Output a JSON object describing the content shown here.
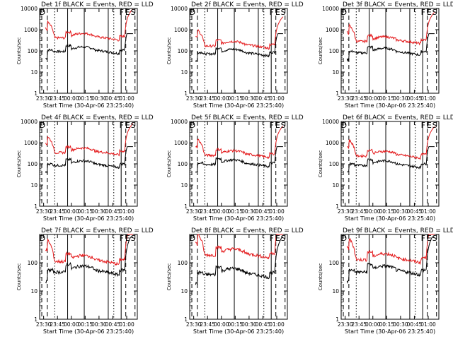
{
  "chart_data": [
    {
      "type": "line",
      "title": "Det 1f BLACK = Events, RED = LLD",
      "xlabel": "Start Time (30-Apr-06 23:25:40)",
      "ylabel": "Counts/sec",
      "ylim": [
        1,
        10000
      ],
      "yscale": "log",
      "x_range_min": [
        -4.33,
        35
      ],
      "x_tick_labels": [
        "23:30",
        "23:45",
        "00:00",
        "00:15",
        "00:30",
        "00:45",
        "01:00"
      ],
      "x_tick_values": [
        0,
        15,
        30,
        45,
        60,
        75,
        90
      ],
      "y_tick_labels": [
        "1",
        "10",
        "100",
        "1000",
        "10000"
      ],
      "y_tick_values": [
        1,
        10,
        100,
        1000,
        10000
      ],
      "markers": [
        "D",
        "F",
        "E",
        "S"
      ],
      "series": [
        {
          "color": "#000000",
          "base": 110,
          "tail": 650
        },
        {
          "color": "#e41a1c",
          "base": 480,
          "tail": 9000
        }
      ]
    },
    {
      "type": "line",
      "title": "Det 2f BLACK = Events, RED = LLD",
      "xlabel": "Start Time (30-Apr-06 23:25:40)",
      "ylabel": "Counts/sec",
      "ylim": [
        1,
        10000
      ],
      "yscale": "log",
      "x_range_min": [
        -4.33,
        35
      ],
      "x_tick_labels": [
        "23:30",
        "23:45",
        "00:00",
        "00:15",
        "00:30",
        "00:45",
        "01:00"
      ],
      "x_tick_values": [
        0,
        15,
        30,
        45,
        60,
        75,
        90
      ],
      "y_tick_labels": [
        "1",
        "10",
        "100",
        "1000",
        "10000"
      ],
      "y_tick_values": [
        1,
        10,
        100,
        1000,
        10000
      ],
      "markers": [
        "D",
        "F",
        "E",
        "S"
      ],
      "series": [
        {
          "color": "#000000",
          "base": 85,
          "tail": 650
        },
        {
          "color": "#e41a1c",
          "base": 200,
          "tail": 9000
        }
      ]
    },
    {
      "type": "line",
      "title": "Det 3f BLACK = Events, RED = LLD",
      "xlabel": "Start Time (30-Apr-06 23:25:40)",
      "ylabel": "Counts/sec",
      "ylim": [
        1,
        10000
      ],
      "yscale": "log",
      "x_range_min": [
        -4.33,
        35
      ],
      "x_tick_labels": [
        "23:30",
        "23:45",
        "00:00",
        "00:15",
        "00:30",
        "00:45",
        "01:00"
      ],
      "x_tick_values": [
        0,
        15,
        30,
        45,
        60,
        75,
        90
      ],
      "y_tick_labels": [
        "1",
        "10",
        "100",
        "1000",
        "10000"
      ],
      "y_tick_values": [
        1,
        10,
        100,
        1000,
        10000
      ],
      "markers": [
        "D",
        "F",
        "E",
        "S"
      ],
      "series": [
        {
          "color": "#000000",
          "base": 95,
          "tail": 650
        },
        {
          "color": "#e41a1c",
          "base": 330,
          "tail": 9000
        }
      ]
    },
    {
      "type": "line",
      "title": "Det 4f BLACK = Events, RED = LLD",
      "xlabel": "Start Time (30-Apr-06 23:25:40)",
      "ylabel": "Counts/sec",
      "ylim": [
        1,
        10000
      ],
      "yscale": "log",
      "x_range_min": [
        -4.33,
        35
      ],
      "x_tick_labels": [
        "23:30",
        "23:45",
        "00:00",
        "00:15",
        "00:30",
        "00:45",
        "01:00"
      ],
      "x_tick_values": [
        0,
        15,
        30,
        45,
        60,
        75,
        90
      ],
      "y_tick_labels": [
        "1",
        "10",
        "100",
        "1000",
        "10000"
      ],
      "y_tick_values": [
        1,
        10,
        100,
        1000,
        10000
      ],
      "markers": [
        "D",
        "F",
        "E",
        "S"
      ],
      "series": [
        {
          "color": "#000000",
          "base": 100,
          "tail": 650
        },
        {
          "color": "#e41a1c",
          "base": 400,
          "tail": 9000
        }
      ]
    },
    {
      "type": "line",
      "title": "Det 5f BLACK = Events, RED = LLD",
      "xlabel": "Start Time (30-Apr-06 23:25:40)",
      "ylabel": "Counts/sec",
      "ylim": [
        1,
        10000
      ],
      "yscale": "log",
      "x_range_min": [
        -4.33,
        35
      ],
      "x_tick_labels": [
        "23:30",
        "23:45",
        "00:00",
        "00:15",
        "00:30",
        "00:45",
        "01:00"
      ],
      "x_tick_values": [
        0,
        15,
        30,
        45,
        60,
        75,
        90
      ],
      "y_tick_labels": [
        "1",
        "10",
        "100",
        "1000",
        "10000"
      ],
      "y_tick_values": [
        1,
        10,
        100,
        1000,
        10000
      ],
      "markers": [
        "D",
        "F",
        "E",
        "S"
      ],
      "series": [
        {
          "color": "#000000",
          "base": 110,
          "tail": 650
        },
        {
          "color": "#e41a1c",
          "base": 300,
          "tail": 9000
        }
      ]
    },
    {
      "type": "line",
      "title": "Det 6f BLACK = Events, RED = LLD",
      "xlabel": "Start Time (30-Apr-06 23:25:40)",
      "ylabel": "Counts/sec",
      "ylim": [
        1,
        10000
      ],
      "yscale": "log",
      "x_range_min": [
        -4.33,
        35
      ],
      "x_tick_labels": [
        "23:30",
        "23:45",
        "00:00",
        "00:15",
        "00:30",
        "00:45",
        "01:00"
      ],
      "x_tick_values": [
        0,
        15,
        30,
        45,
        60,
        75,
        90
      ],
      "y_tick_labels": [
        "1",
        "10",
        "100",
        "1000",
        "10000"
      ],
      "y_tick_values": [
        1,
        10,
        100,
        1000,
        10000
      ],
      "markers": [
        "D",
        "F",
        "E",
        "S"
      ],
      "series": [
        {
          "color": "#000000",
          "base": 100,
          "tail": 650
        },
        {
          "color": "#e41a1c",
          "base": 280,
          "tail": 9000
        }
      ]
    },
    {
      "type": "line",
      "title": "Det 7f BLACK = Events, RED = LLD",
      "xlabel": "Start Time (30-Apr-06 23:25:40)",
      "ylabel": "Counts/sec",
      "ylim": [
        1,
        1000
      ],
      "yscale": "log",
      "x_range_min": [
        -4.33,
        35
      ],
      "x_tick_labels": [
        "23:30",
        "23:45",
        "00:00",
        "00:15",
        "00:30",
        "00:45",
        "01:00"
      ],
      "x_tick_values": [
        0,
        15,
        30,
        45,
        60,
        75,
        90
      ],
      "y_tick_labels": [
        "1",
        "10",
        "100"
      ],
      "y_tick_values": [
        1,
        10,
        100
      ],
      "markers": [
        "D",
        "F",
        "E",
        "S"
      ],
      "series": [
        {
          "color": "#000000",
          "base": 55,
          "tail": 800
        },
        {
          "color": "#e41a1c",
          "base": 130,
          "tail": 1000
        }
      ]
    },
    {
      "type": "line",
      "title": "Det 8f BLACK = Events, RED = LLD",
      "xlabel": "Start Time (30-Apr-06 23:25:40)",
      "ylabel": "Counts/sec",
      "ylim": [
        1,
        1000
      ],
      "yscale": "log",
      "x_range_min": [
        -4.33,
        35
      ],
      "x_tick_labels": [
        "23:30",
        "23:45",
        "00:00",
        "00:15",
        "00:30",
        "00:45",
        "01:00"
      ],
      "x_tick_values": [
        0,
        15,
        30,
        45,
        60,
        75,
        90
      ],
      "y_tick_labels": [
        "1",
        "10",
        "100"
      ],
      "y_tick_values": [
        1,
        10,
        100
      ],
      "markers": [
        "D",
        "F",
        "E",
        "S"
      ],
      "series": [
        {
          "color": "#000000",
          "base": 45,
          "tail": 800
        },
        {
          "color": "#e41a1c",
          "base": 220,
          "tail": 1000
        }
      ]
    },
    {
      "type": "line",
      "title": "Det 9f BLACK = Events, RED = LLD",
      "xlabel": "Start Time (30-Apr-06 23:25:40)",
      "ylabel": "Counts/sec",
      "ylim": [
        1,
        1000
      ],
      "yscale": "log",
      "x_range_min": [
        -4.33,
        35
      ],
      "x_tick_labels": [
        "23:30",
        "23:45",
        "00:00",
        "00:15",
        "00:30",
        "00:45",
        "01:00"
      ],
      "x_tick_values": [
        0,
        15,
        30,
        45,
        60,
        75,
        90
      ],
      "y_tick_labels": [
        "1",
        "10",
        "100"
      ],
      "y_tick_values": [
        1,
        10,
        100
      ],
      "markers": [
        "D",
        "F",
        "E",
        "S"
      ],
      "series": [
        {
          "color": "#000000",
          "base": 55,
          "tail": 800
        },
        {
          "color": "#e41a1c",
          "base": 150,
          "tail": 1000
        }
      ]
    }
  ]
}
